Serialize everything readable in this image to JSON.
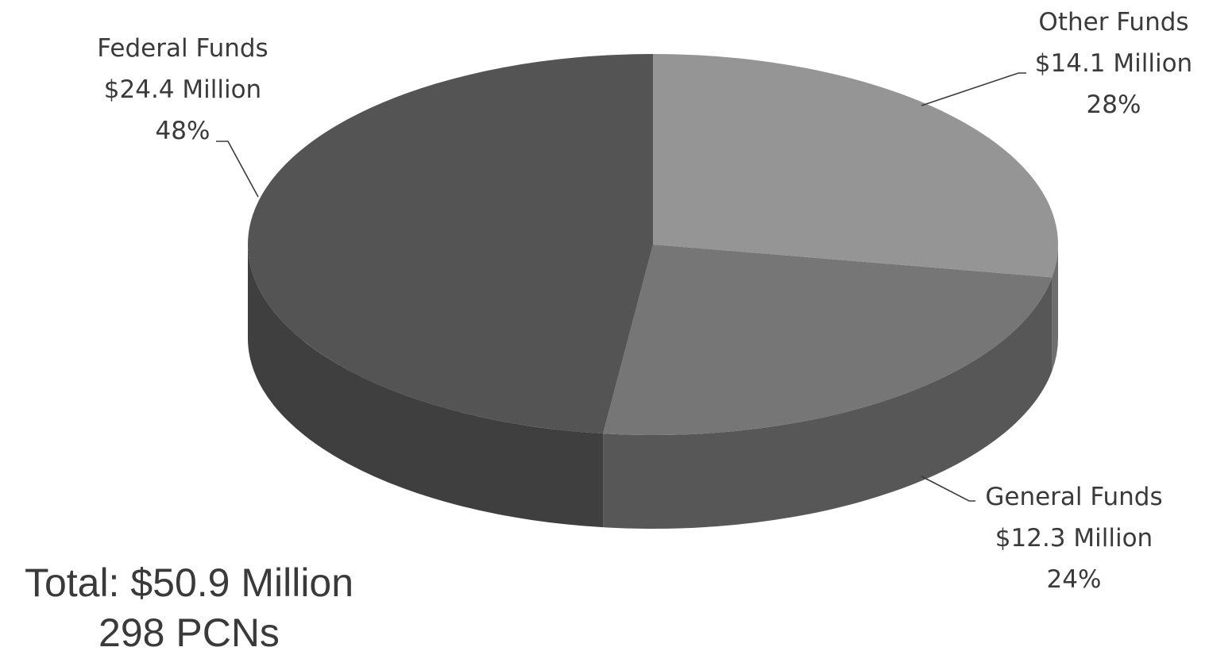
{
  "chart_data": {
    "type": "pie",
    "title": "",
    "style": "3d",
    "slices": [
      {
        "name": "Other Funds",
        "value": 14.1,
        "value_label": "$14.1 Million",
        "percent": 28,
        "percent_label": "28%",
        "color": "#959595",
        "side_color": "#6e6e6e"
      },
      {
        "name": "General Funds",
        "value": 12.3,
        "value_label": "$12.3 Million",
        "percent": 24,
        "percent_label": "24%",
        "color": "#767676",
        "side_color": "#575757"
      },
      {
        "name": "Federal Funds",
        "value": 24.4,
        "value_label": "$24.4 Million",
        "percent": 48,
        "percent_label": "48%",
        "color": "#545454",
        "side_color": "#3f3f3f"
      }
    ],
    "summary": {
      "total_label": "Total: $50.9 Million",
      "pcn_label": "298 PCNs"
    }
  }
}
